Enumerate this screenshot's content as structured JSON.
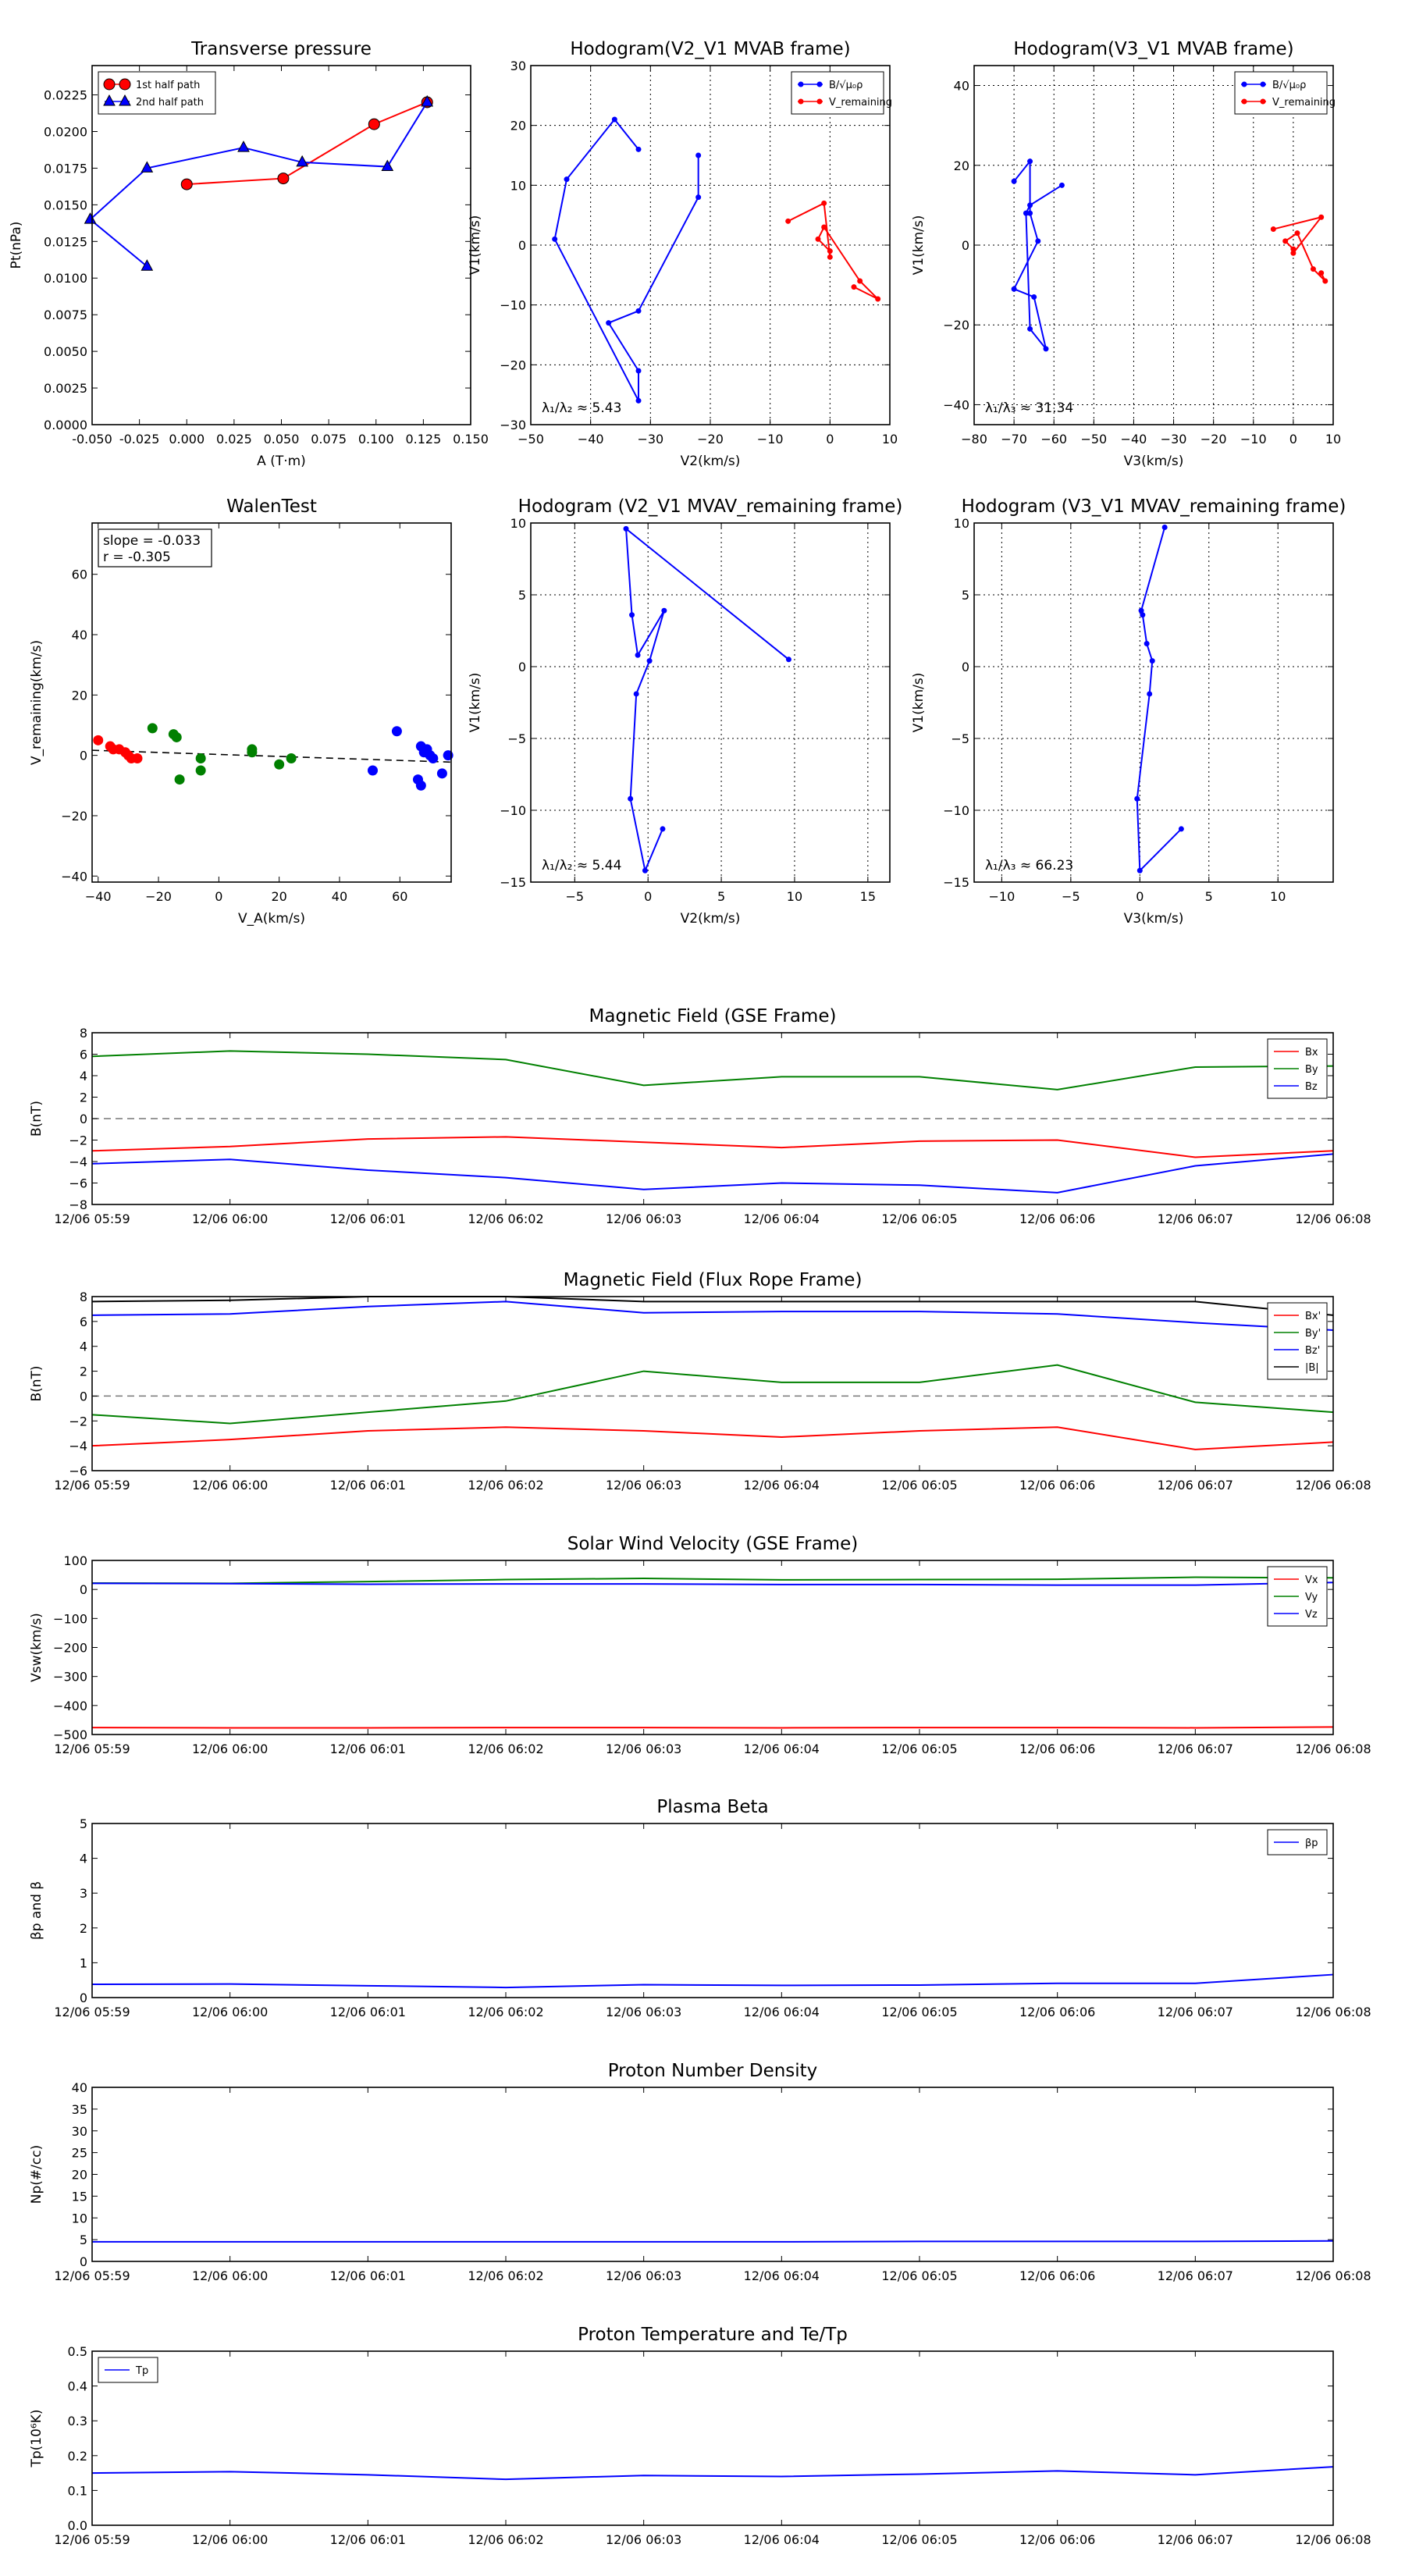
{
  "time_ticks": [
    "12/06 05:59",
    "12/06 06:00",
    "12/06 06:01",
    "12/06 06:02",
    "12/06 06:03",
    "12/06 06:04",
    "12/06 06:05",
    "12/06 06:06",
    "12/06 06:07",
    "12/06 06:08"
  ],
  "colors": {
    "red": "#ff0000",
    "green": "#008000",
    "blue": "#0000ff",
    "black": "#000000"
  },
  "chart_data": [
    {
      "id": "pt",
      "type": "line",
      "title": "Transverse pressure",
      "xlabel": "A (T·m)",
      "ylabel": "Pt(nPa)",
      "xlim": [
        -0.05,
        0.15
      ],
      "ylim": [
        0,
        0.0245
      ],
      "xticks": [
        "-0.050",
        "-0.025",
        "0.000",
        "0.025",
        "0.050",
        "0.075",
        "0.100",
        "0.125",
        "0.150"
      ],
      "yticks": [
        "0.0000",
        "0.0025",
        "0.0050",
        "0.0075",
        "0.0100",
        "0.0125",
        "0.0150",
        "0.0175",
        "0.0200",
        "0.0225"
      ],
      "legend_pos": "top-left",
      "series": [
        {
          "name": "1st half path",
          "marker": "circle",
          "color": "red",
          "x": [
            0.0,
            0.051,
            0.099,
            0.127
          ],
          "y": [
            0.0164,
            0.0168,
            0.0205,
            0.022
          ]
        },
        {
          "name": "2nd half path",
          "marker": "triangle",
          "color": "blue",
          "x": [
            -0.021,
            -0.051,
            -0.021,
            0.03,
            0.061,
            0.106,
            0.127
          ],
          "y": [
            0.0108,
            0.014,
            0.0175,
            0.0189,
            0.0179,
            0.0176,
            0.022
          ]
        }
      ]
    },
    {
      "id": "h1",
      "type": "line",
      "title": "Hodogram(V2_V1 MVAB frame)",
      "xlabel": "V2(km/s)",
      "ylabel": "V1(km/s)",
      "xlim": [
        -50,
        10
      ],
      "ylim": [
        -30,
        30
      ],
      "xticks": [
        "−50",
        "−40",
        "−30",
        "−20",
        "−10",
        "0",
        "10"
      ],
      "yticks": [
        "−30",
        "−20",
        "−10",
        "0",
        "10",
        "20",
        "30"
      ],
      "grid": true,
      "legend_pos": "top-right",
      "annotation": "λ₁/λ₂ ≈ 5.43",
      "series": [
        {
          "name": "B/√μ₀ρ",
          "color": "blue",
          "x": [
            -32,
            -36,
            -44,
            -46,
            -32,
            -32,
            -37,
            -32,
            -22,
            -22
          ],
          "y": [
            16,
            21,
            11,
            1,
            -26,
            -21,
            -13,
            -11,
            8,
            15
          ]
        },
        {
          "name": "V_remaining",
          "color": "red",
          "x": [
            -7,
            -1,
            0,
            0,
            -2,
            -1,
            5,
            8,
            4
          ],
          "y": [
            4,
            7,
            -2,
            -1,
            1,
            3,
            -6,
            -9,
            -7
          ]
        }
      ]
    },
    {
      "id": "h2",
      "type": "line",
      "title": "Hodogram(V3_V1 MVAB frame)",
      "xlabel": "V3(km/s)",
      "ylabel": "V1(km/s)",
      "xlim": [
        -80,
        10
      ],
      "ylim": [
        -45,
        45
      ],
      "xticks": [
        "−80",
        "−70",
        "−60",
        "−50",
        "−40",
        "−30",
        "−20",
        "−10",
        "0",
        "10"
      ],
      "yticks": [
        "−40",
        "−20",
        "0",
        "20",
        "40"
      ],
      "grid": true,
      "legend_pos": "top-right",
      "annotation": "λ₁/λ₃ ≈ 31.34",
      "series": [
        {
          "name": "B/√μ₀ρ",
          "color": "blue",
          "x": [
            -70,
            -66,
            -66,
            -64,
            -70,
            -65,
            -62,
            -66,
            -67,
            -66,
            -58
          ],
          "y": [
            16,
            21,
            8,
            1,
            -11,
            -13,
            -26,
            -21,
            8,
            10,
            15
          ]
        },
        {
          "name": "V_remaining",
          "color": "red",
          "x": [
            -5,
            7,
            0,
            0,
            -2,
            1,
            5,
            8,
            7
          ],
          "y": [
            4,
            7,
            -2,
            -1,
            1,
            3,
            -6,
            -9,
            -7
          ]
        }
      ]
    },
    {
      "id": "walen",
      "type": "scatter",
      "title": "WalenTest",
      "xlabel": "V_A(km/s)",
      "ylabel": "V_remaining(km/s)",
      "xlim": [
        -42,
        77
      ],
      "ylim": [
        -42,
        77
      ],
      "xticks": [
        "−40",
        "−20",
        "0",
        "20",
        "40",
        "60"
      ],
      "yticks": [
        "−40",
        "−20",
        "0",
        "20",
        "40",
        "60"
      ],
      "stats": {
        "slope": "slope = -0.033",
        "r": "r = -0.305"
      },
      "fit": {
        "slope": -0.033,
        "intercept": 0.3
      },
      "groups": [
        {
          "color": "red",
          "x": [
            -40,
            -36,
            -35,
            -31,
            -30,
            -29,
            -27,
            -33
          ],
          "y": [
            5,
            3,
            2,
            1,
            0,
            -1,
            -1,
            2
          ]
        },
        {
          "color": "green",
          "x": [
            -22,
            -15,
            -14,
            -13,
            -6,
            -6,
            11,
            11,
            20,
            24
          ],
          "y": [
            9,
            7,
            6,
            -8,
            -1,
            -5,
            1,
            2,
            -3,
            -1
          ]
        },
        {
          "color": "blue",
          "x": [
            51,
            59,
            66,
            67,
            67,
            68,
            69,
            70,
            71,
            74,
            76
          ],
          "y": [
            -5,
            8,
            -8,
            -10,
            3,
            1,
            2,
            0,
            -1,
            -6,
            0
          ]
        }
      ]
    },
    {
      "id": "h3",
      "type": "line",
      "title": "Hodogram (V2_V1 MVAV_remaining frame)",
      "xlabel": "V2(km/s)",
      "ylabel": "V1(km/s)",
      "xlim": [
        -8,
        16.5
      ],
      "ylim": [
        -15,
        10
      ],
      "xticks": [
        "−5",
        "0",
        "5",
        "10",
        "15"
      ],
      "yticks": [
        "−15",
        "−10",
        "−5",
        "0",
        "5",
        "10"
      ],
      "grid": true,
      "annotation": "λ₁/λ₂ ≈ 5.44",
      "series": [
        {
          "color": "blue",
          "x": [
            1,
            -0.2,
            -1.2,
            -0.8,
            0.1,
            1.1,
            -0.7,
            -1.1,
            -1.5,
            9.6
          ],
          "y": [
            -11.3,
            -14.2,
            -9.2,
            -1.9,
            0.4,
            3.9,
            0.8,
            3.6,
            9.6,
            0.5
          ]
        }
      ]
    },
    {
      "id": "h4",
      "type": "line",
      "title": "Hodogram (V3_V1 MVAV_remaining frame)",
      "xlabel": "V3(km/s)",
      "ylabel": "V1(km/s)",
      "xlim": [
        -12,
        14
      ],
      "ylim": [
        -15,
        10
      ],
      "xticks": [
        "−10",
        "−5",
        "0",
        "5",
        "10"
      ],
      "yticks": [
        "−15",
        "−10",
        "−5",
        "0",
        "5",
        "10"
      ],
      "grid": true,
      "annotation": "λ₁/λ₃ ≈ 66.23",
      "series": [
        {
          "color": "blue",
          "x": [
            3,
            0,
            -0.2,
            0.7,
            0.9,
            0.5,
            0.2,
            0.1,
            1.8
          ],
          "y": [
            -11.3,
            -14.2,
            -9.2,
            -1.9,
            0.4,
            1.6,
            3.6,
            3.9,
            9.7
          ]
        }
      ]
    },
    {
      "id": "bgse",
      "type": "line",
      "title": "Magnetic Field (GSE Frame)",
      "ylabel": "B(nT)",
      "ylim": [
        -8,
        8
      ],
      "yticks": [
        "−8",
        "−6",
        "−4",
        "−2",
        "0",
        "2",
        "4",
        "6",
        "8"
      ],
      "zero_line": true,
      "legend_pos": "top-right",
      "series": [
        {
          "name": "Bx",
          "color": "red",
          "y": [
            -3.0,
            -2.6,
            -1.9,
            -1.7,
            -2.2,
            -2.7,
            -2.1,
            -2.0,
            -3.6,
            -3.0
          ]
        },
        {
          "name": "By",
          "color": "green",
          "y": [
            5.8,
            6.3,
            6.0,
            5.5,
            3.1,
            3.9,
            3.9,
            2.7,
            4.8,
            4.9
          ]
        },
        {
          "name": "Bz",
          "color": "blue",
          "y": [
            -4.2,
            -3.8,
            -4.8,
            -5.5,
            -6.6,
            -6.0,
            -6.2,
            -6.9,
            -4.4,
            -3.3
          ]
        }
      ]
    },
    {
      "id": "bfr",
      "type": "line",
      "title": "Magnetic Field (Flux Rope Frame)",
      "ylabel": "B(nT)",
      "ylim": [
        -6,
        8
      ],
      "yticks": [
        "−6",
        "−4",
        "−2",
        "0",
        "2",
        "4",
        "6",
        "8"
      ],
      "zero_line": true,
      "legend_pos": "top-right",
      "series": [
        {
          "name": "Bx'",
          "color": "red",
          "y": [
            -4.0,
            -3.5,
            -2.8,
            -2.5,
            -2.8,
            -3.3,
            -2.8,
            -2.5,
            -4.3,
            -3.7
          ]
        },
        {
          "name": "By'",
          "color": "green",
          "y": [
            -1.5,
            -2.2,
            -1.3,
            -0.4,
            2.0,
            1.1,
            1.1,
            2.5,
            -0.5,
            -1.3
          ]
        },
        {
          "name": "Bz'",
          "color": "blue",
          "y": [
            6.5,
            6.6,
            7.2,
            7.6,
            6.7,
            6.8,
            6.8,
            6.6,
            5.9,
            5.3
          ]
        },
        {
          "name": "|B|",
          "color": "black",
          "y": [
            7.6,
            7.7,
            8.0,
            8.0,
            7.6,
            7.6,
            7.6,
            7.6,
            7.6,
            6.5
          ]
        }
      ]
    },
    {
      "id": "vsw",
      "type": "line",
      "title": "Solar Wind Velocity (GSE Frame)",
      "ylabel": "Vsw(km/s)",
      "ylim": [
        -500,
        100
      ],
      "yticks": [
        "−500",
        "−400",
        "−300",
        "−200",
        "−100",
        "0",
        "100"
      ],
      "legend_pos": "top-right",
      "series": [
        {
          "name": "Vx",
          "color": "red",
          "y": [
            -476,
            -477,
            -477,
            -476,
            -476,
            -477,
            -476,
            -476,
            -477,
            -474
          ]
        },
        {
          "name": "Vy",
          "color": "green",
          "y": [
            22,
            21,
            27,
            34,
            38,
            33,
            34,
            35,
            42,
            40
          ]
        },
        {
          "name": "Vz",
          "color": "blue",
          "y": [
            21,
            20,
            18,
            19,
            19,
            17,
            17,
            15,
            15,
            24
          ]
        }
      ]
    },
    {
      "id": "beta",
      "type": "line",
      "title": "Plasma Beta",
      "ylabel": "βp and β",
      "ylim": [
        0,
        5
      ],
      "yticks": [
        "0",
        "1",
        "2",
        "3",
        "4",
        "5"
      ],
      "legend_pos": "top-right",
      "series": [
        {
          "name": "βp",
          "color": "blue",
          "y": [
            0.38,
            0.39,
            0.34,
            0.29,
            0.37,
            0.35,
            0.36,
            0.41,
            0.41,
            0.66
          ]
        }
      ]
    },
    {
      "id": "np",
      "type": "line",
      "title": "Proton Number Density",
      "ylabel": "Np(#/cc)",
      "ylim": [
        0,
        40
      ],
      "yticks": [
        "0",
        "5",
        "10",
        "15",
        "20",
        "25",
        "30",
        "35",
        "40"
      ],
      "series": [
        {
          "y": [
            4.5,
            4.5,
            4.5,
            4.5,
            4.5,
            4.5,
            4.6,
            4.6,
            4.6,
            4.7
          ]
        }
      ]
    },
    {
      "id": "tp",
      "type": "line",
      "title": "Proton Temperature and Te/Tp",
      "ylabel": "Tp(10⁶K)",
      "ylim": [
        0,
        0.5
      ],
      "yticks": [
        "0.0",
        "0.1",
        "0.2",
        "0.3",
        "0.4",
        "0.5"
      ],
      "legend_pos": "top-left",
      "series": [
        {
          "name": "Tp",
          "color": "blue",
          "y": [
            0.15,
            0.154,
            0.145,
            0.132,
            0.143,
            0.14,
            0.147,
            0.156,
            0.145,
            0.168
          ]
        }
      ]
    }
  ]
}
